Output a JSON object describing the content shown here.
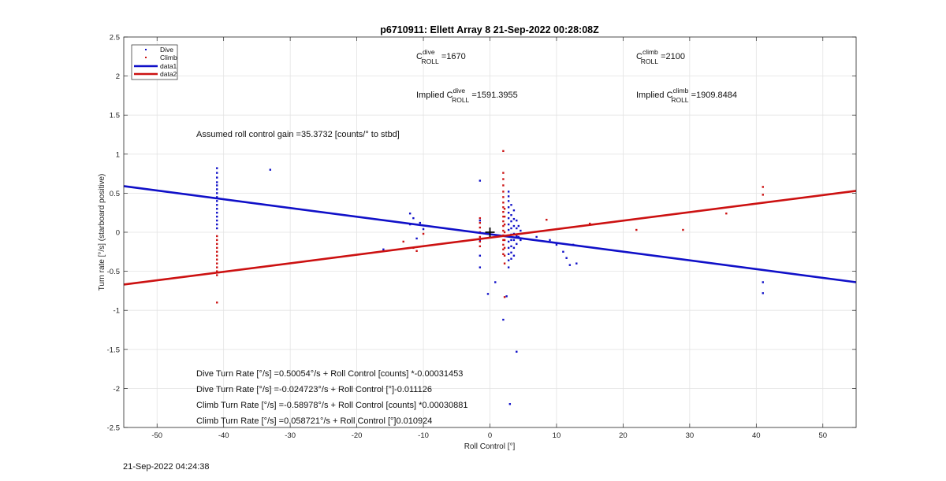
{
  "chart_data": {
    "type": "scatter",
    "title": "p6710911: Ellett Array 8 21-Sep-2022 00:28:08Z",
    "xlabel": "Roll Control [°]",
    "ylabel": "Turn rate [°/s] (starboard positive)",
    "xlim": [
      -55,
      55
    ],
    "ylim": [
      -2.5,
      2.5
    ],
    "xticks": [
      -50,
      -40,
      -30,
      -20,
      -10,
      0,
      10,
      20,
      30,
      40,
      50
    ],
    "yticks": [
      -2.5,
      -2,
      -1.5,
      -1,
      -0.5,
      0,
      0.5,
      1,
      1.5,
      2,
      2.5
    ],
    "grid": true,
    "legend_position": "top-left",
    "legend": [
      {
        "name": "Dive",
        "style": "dot",
        "color": "#1010c8"
      },
      {
        "name": "Climb",
        "style": "dot",
        "color": "#cc1111"
      },
      {
        "name": "data1",
        "style": "line",
        "color": "#1010c8"
      },
      {
        "name": "data2",
        "style": "line",
        "color": "#cc1111"
      }
    ],
    "series": [
      {
        "name": "Dive",
        "type": "scatter",
        "color": "#1010c8",
        "points": [
          [
            -41,
            0.82
          ],
          [
            -41,
            0.76
          ],
          [
            -41,
            0.7
          ],
          [
            -41,
            0.64
          ],
          [
            -41,
            0.6
          ],
          [
            -41,
            0.55
          ],
          [
            -41,
            0.5
          ],
          [
            -41,
            0.45
          ],
          [
            -41,
            0.4
          ],
          [
            -41,
            0.35
          ],
          [
            -41,
            0.3
          ],
          [
            -41,
            0.25
          ],
          [
            -41,
            0.2
          ],
          [
            -41,
            0.15
          ],
          [
            -41,
            0.1
          ],
          [
            -41,
            0.05
          ],
          [
            -33,
            0.8
          ],
          [
            -16,
            -0.22
          ],
          [
            -12,
            0.24
          ],
          [
            -12,
            0.1
          ],
          [
            -11.5,
            0.18
          ],
          [
            -11,
            -0.08
          ],
          [
            -10.5,
            0.12
          ],
          [
            -10,
            0.04
          ],
          [
            -1.5,
            0.66
          ],
          [
            -1.5,
            0.15
          ],
          [
            -1.5,
            -0.1
          ],
          [
            -1.5,
            -0.3
          ],
          [
            -1.5,
            -0.45
          ],
          [
            -0.3,
            -0.79
          ],
          [
            0.8,
            -0.64
          ],
          [
            2,
            -1.12
          ],
          [
            2.5,
            -0.82
          ],
          [
            3,
            -2.2
          ],
          [
            4,
            -1.53
          ],
          [
            2.8,
            0.52
          ],
          [
            2.8,
            0.46
          ],
          [
            2.8,
            0.4
          ],
          [
            2.8,
            0.32
          ],
          [
            2.8,
            0.25
          ],
          [
            2.8,
            0.18
          ],
          [
            2.8,
            0.1
          ],
          [
            2.8,
            0.03
          ],
          [
            2.8,
            -0.05
          ],
          [
            2.8,
            -0.12
          ],
          [
            2.8,
            -0.2
          ],
          [
            2.8,
            -0.28
          ],
          [
            2.8,
            -0.36
          ],
          [
            2.8,
            -0.45
          ],
          [
            3.2,
            0.35
          ],
          [
            3.2,
            0.22
          ],
          [
            3.2,
            0.14
          ],
          [
            3.2,
            0.05
          ],
          [
            3.2,
            -0.03
          ],
          [
            3.2,
            -0.1
          ],
          [
            3.2,
            -0.18
          ],
          [
            3.2,
            -0.26
          ],
          [
            3.2,
            -0.34
          ],
          [
            3.6,
            0.28
          ],
          [
            3.6,
            0.17
          ],
          [
            3.6,
            0.08
          ],
          [
            3.6,
            -0.02
          ],
          [
            3.6,
            -0.1
          ],
          [
            3.6,
            -0.2
          ],
          [
            3.6,
            -0.3
          ],
          [
            4,
            0.15
          ],
          [
            4,
            0.05
          ],
          [
            4,
            -0.05
          ],
          [
            4,
            -0.15
          ],
          [
            4.3,
            0.08
          ],
          [
            4.3,
            -0.06
          ],
          [
            4.6,
            0.02
          ],
          [
            4.6,
            -0.1
          ],
          [
            7,
            -0.06
          ],
          [
            9,
            -0.1
          ],
          [
            10,
            -0.16
          ],
          [
            11,
            -0.25
          ],
          [
            11.5,
            -0.33
          ],
          [
            12,
            -0.42
          ],
          [
            12.5,
            -0.16
          ],
          [
            13,
            -0.4
          ],
          [
            41,
            -0.64
          ],
          [
            41,
            -0.78
          ]
        ]
      },
      {
        "name": "Climb",
        "type": "scatter",
        "color": "#cc1111",
        "points": [
          [
            -41,
            -0.9
          ],
          [
            -41,
            -0.55
          ],
          [
            -41,
            -0.5
          ],
          [
            -41,
            -0.45
          ],
          [
            -41,
            -0.4
          ],
          [
            -41,
            -0.35
          ],
          [
            -41,
            -0.3
          ],
          [
            -41,
            -0.25
          ],
          [
            -41,
            -0.2
          ],
          [
            -41,
            -0.15
          ],
          [
            -41,
            -0.1
          ],
          [
            -41,
            -0.05
          ],
          [
            -13,
            -0.12
          ],
          [
            -11.5,
            -0.2
          ],
          [
            -11,
            -0.24
          ],
          [
            -10,
            -0.02
          ],
          [
            -1.5,
            0.18
          ],
          [
            -1.5,
            0.12
          ],
          [
            -1.5,
            0.06
          ],
          [
            -1.5,
            0.0
          ],
          [
            -1.5,
            -0.06
          ],
          [
            -1.5,
            -0.12
          ],
          [
            -1.5,
            -0.18
          ],
          [
            2,
            1.04
          ],
          [
            2,
            0.76
          ],
          [
            2,
            0.68
          ],
          [
            2,
            0.6
          ],
          [
            2,
            0.52
          ],
          [
            2,
            0.45
          ],
          [
            2,
            0.38
          ],
          [
            2,
            0.32
          ],
          [
            2,
            0.26
          ],
          [
            2,
            0.2
          ],
          [
            2,
            0.14
          ],
          [
            2,
            0.08
          ],
          [
            2,
            0.02
          ],
          [
            2,
            -0.04
          ],
          [
            2,
            -0.1
          ],
          [
            2,
            -0.16
          ],
          [
            2,
            -0.22
          ],
          [
            2,
            -0.28
          ],
          [
            2.2,
            0.3
          ],
          [
            2.2,
            0.2
          ],
          [
            2.2,
            0.1
          ],
          [
            2.2,
            0.0
          ],
          [
            2.2,
            -0.1
          ],
          [
            2.2,
            -0.2
          ],
          [
            2.2,
            -0.3
          ],
          [
            2.2,
            -0.4
          ],
          [
            2.2,
            -0.83
          ],
          [
            8.5,
            0.16
          ],
          [
            15,
            0.11
          ],
          [
            22,
            0.03
          ],
          [
            29,
            0.03
          ],
          [
            35.5,
            0.24
          ],
          [
            41,
            0.58
          ],
          [
            41,
            0.48
          ]
        ]
      },
      {
        "name": "data1",
        "type": "line",
        "color": "#1010c8",
        "points": [
          [
            -55,
            0.59
          ],
          [
            55,
            -0.64
          ]
        ]
      },
      {
        "name": "data2",
        "type": "line",
        "color": "#cc1111",
        "points": [
          [
            -55,
            -0.67
          ],
          [
            55,
            0.53
          ]
        ]
      }
    ],
    "marker": {
      "symbol": "+",
      "x": 0,
      "y": 0
    }
  },
  "annotations": {
    "gain": "Assumed roll control gain =35.3732 [counts/° to stbd]",
    "c_dive_prefix": "C",
    "c_dive_sup": "dive",
    "c_dive_sub": "ROLL",
    "c_dive_val": " =1670",
    "c_climb_prefix": "C",
    "c_climb_sup": "climb",
    "c_climb_sub": "ROLL",
    "c_climb_val": " =2100",
    "imp_dive_prefix": "Implied C",
    "imp_dive_sup": "dive",
    "imp_dive_sub": "ROLL",
    "imp_dive_val": " =1591.3955",
    "imp_climb_prefix": "Implied C",
    "imp_climb_sup": "climb",
    "imp_climb_sub": "ROLL",
    "imp_climb_val": " =1909.8484",
    "eq1": "Dive Turn Rate [°/s] =0.50054°/s + Roll Control [counts] *-0.00031453",
    "eq2": "Dive Turn Rate [°/s] =-0.024723°/s + Roll Control [°]-0.011126",
    "eq3": "Climb Turn Rate [°/s] =-0.58978°/s + Roll Control [counts] *0.00030881",
    "eq4": "Climb Turn Rate [°/s] =0.058721°/s + Roll Control [°]0.010924"
  },
  "footer": {
    "timestamp": "21-Sep-2022 04:24:38"
  }
}
